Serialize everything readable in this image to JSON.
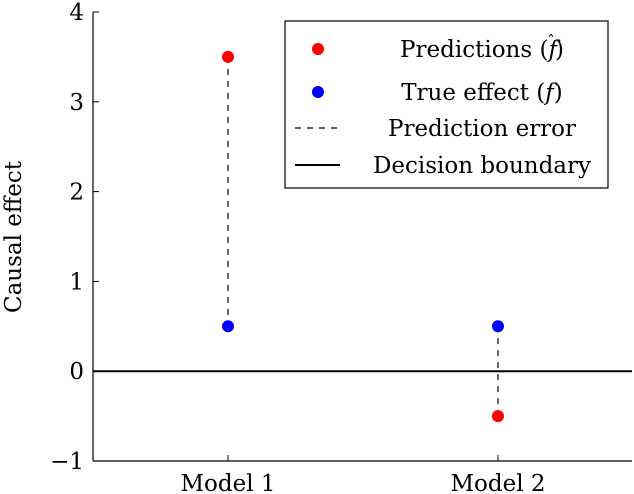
{
  "chart_data": {
    "type": "scatter",
    "categories": [
      "Model 1",
      "Model 2"
    ],
    "series": [
      {
        "name": "Predictions (f̂)",
        "values": [
          3.5,
          -0.5
        ],
        "color": "#ff0000"
      },
      {
        "name": "True effect (f)",
        "values": [
          0.5,
          0.5
        ],
        "color": "#0000ff"
      }
    ],
    "error_label": "Prediction error",
    "boundary_label": "Decision boundary",
    "boundary_value": 0,
    "ylabel": "Causal effect",
    "xlabel": "",
    "ylim": [
      -1,
      4
    ],
    "yticks": [
      -1,
      0,
      1,
      2,
      3,
      4
    ],
    "ytick_labels": [
      "−1",
      "0",
      "1",
      "2",
      "3",
      "4"
    ],
    "legend_position": "top-right",
    "grid": false
  }
}
